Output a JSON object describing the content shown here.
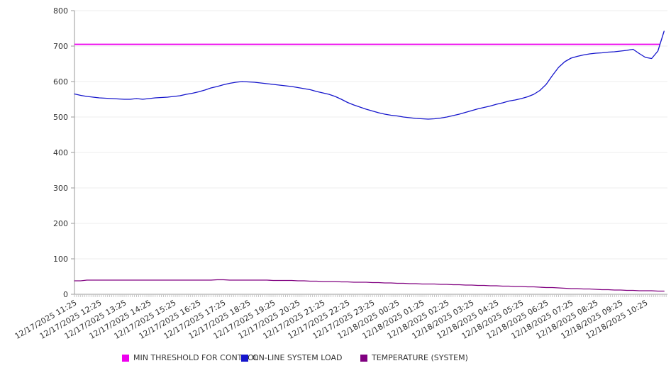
{
  "chart_data": {
    "type": "line",
    "title": "",
    "xlabel": "",
    "ylabel": "",
    "ylim": [
      0,
      800
    ],
    "y_ticks": [
      0,
      100,
      200,
      300,
      400,
      500,
      600,
      700,
      800
    ],
    "grid": "horizontal",
    "legend_position": "bottom",
    "points_per_label": 4,
    "x_tick_labels": [
      "12/17/2025 11:25",
      "12/17/2025 12:25",
      "12/17/2025 13:25",
      "12/17/2025 14:25",
      "12/17/2025 15:25",
      "12/17/2025 16:25",
      "12/17/2025 17:25",
      "12/17/2025 18:25",
      "12/17/2025 19:25",
      "12/17/2025 20:25",
      "12/17/2025 21:25",
      "12/17/2025 22:25",
      "12/17/2025 23:25",
      "12/18/2025 00:25",
      "12/18/2025 01:25",
      "12/18/2025 02:25",
      "12/18/2025 03:25",
      "12/18/2025 04:25",
      "12/18/2025 05:25",
      "12/18/2025 06:25",
      "12/18/2025 07:25",
      "12/18/2025 08:25",
      "12/18/2025 09:25",
      "12/18/2025 10:25"
    ],
    "series": [
      {
        "name": "MIN THRESHOLD FOR CONTROL",
        "color": "#ee00ee",
        "style": "threshold",
        "value": 705
      },
      {
        "name": "ON-LINE SYSTEM LOAD",
        "color": "#1515cc",
        "style": "line",
        "values": [
          565,
          561,
          558,
          556,
          554,
          553,
          552,
          551,
          550,
          550,
          552,
          550,
          552,
          554,
          555,
          556,
          558,
          560,
          564,
          567,
          571,
          576,
          582,
          586,
          591,
          595,
          598,
          600,
          599,
          598,
          596,
          594,
          592,
          590,
          588,
          586,
          583,
          580,
          577,
          572,
          568,
          564,
          558,
          550,
          541,
          534,
          528,
          522,
          517,
          512,
          508,
          505,
          503,
          500,
          498,
          496,
          495,
          494,
          495,
          497,
          500,
          504,
          508,
          513,
          518,
          523,
          527,
          531,
          536,
          540,
          545,
          548,
          552,
          557,
          564,
          575,
          592,
          617,
          640,
          656,
          666,
          671,
          675,
          678,
          680,
          681,
          683,
          684,
          686,
          688,
          691,
          679,
          668,
          665,
          686,
          742
        ]
      },
      {
        "name": "TEMPERATURE (SYSTEM)",
        "color": "#800080",
        "style": "line",
        "values": [
          38,
          38,
          40,
          40,
          40,
          40,
          40,
          40,
          40,
          40,
          40,
          40,
          40,
          40,
          40,
          40,
          40,
          40,
          40,
          40,
          40,
          40,
          40,
          41,
          41,
          40,
          40,
          40,
          40,
          40,
          40,
          40,
          39,
          39,
          39,
          39,
          38,
          38,
          37,
          37,
          36,
          36,
          36,
          35,
          35,
          34,
          34,
          34,
          33,
          33,
          32,
          32,
          31,
          31,
          30,
          30,
          29,
          29,
          29,
          28,
          28,
          27,
          27,
          26,
          26,
          25,
          25,
          24,
          24,
          23,
          23,
          22,
          22,
          21,
          21,
          20,
          19,
          19,
          18,
          17,
          16,
          16,
          15,
          15,
          14,
          13,
          13,
          12,
          12,
          11,
          11,
          10,
          10,
          10,
          9,
          9
        ]
      }
    ]
  }
}
